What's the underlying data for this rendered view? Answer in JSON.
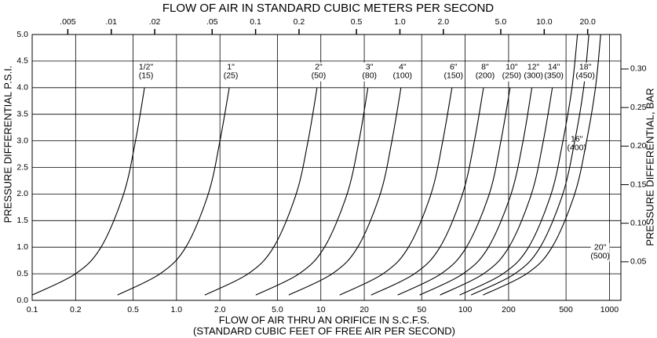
{
  "chart_data": {
    "type": "line",
    "title": "FLOW OF AIR IN STANDARD CUBIC METERS PER SECOND",
    "xlabel": "FLOW OF AIR THRU AN ORIFICE IN S.C.F.S.",
    "xlabel2": "(STANDARD CUBIC FEET OF FREE AIR PER SECOND)",
    "ylabel": "PRESSURE DIFFERENTIAL P.S.I.",
    "y2label": "PRESSURE DIFFERENTIAL, BAR",
    "xscale": "log",
    "grid": true,
    "color": "#000000",
    "xlim": [
      0.1,
      1200
    ],
    "xticks": [
      0.1,
      0.2,
      0.5,
      {
        "value": 1,
        "label": "1.0"
      },
      {
        "value": 2,
        "label": "2.0"
      },
      {
        "value": 5,
        "label": "5.0"
      },
      10,
      20,
      50,
      100,
      200,
      500,
      1000
    ],
    "x2lim": [
      0.002832,
      33.98
    ],
    "x2ticks": [
      {
        "value": 0.005,
        "label": ".005"
      },
      {
        "value": 0.01,
        "label": ".01"
      },
      {
        "value": 0.02,
        "label": ".02"
      },
      {
        "value": 0.05,
        "label": ".05"
      },
      0.1,
      0.2,
      0.5,
      {
        "value": 1,
        "label": "1.0"
      },
      {
        "value": 2,
        "label": "2.0"
      },
      {
        "value": 5,
        "label": "5.0"
      },
      {
        "value": 10,
        "label": "10.0"
      },
      {
        "value": 20,
        "label": "20.0"
      }
    ],
    "ylim": [
      0,
      5
    ],
    "yticks": [
      {
        "value": 0,
        "label": "0.0"
      },
      0.5,
      {
        "value": 1,
        "label": "1.0"
      },
      1.5,
      {
        "value": 2,
        "label": "2.0"
      },
      2.5,
      {
        "value": 3,
        "label": "3.0"
      },
      3.5,
      {
        "value": 4,
        "label": "4.0"
      },
      4.5,
      {
        "value": 5,
        "label": "5.0"
      }
    ],
    "y2lim": [
      0,
      0.3447
    ],
    "y2ticks": [
      {
        "value": 0.05,
        "label": "0.05"
      },
      {
        "value": 0.1,
        "label": "0.10"
      },
      {
        "value": 0.15,
        "label": "0.15"
      },
      {
        "value": 0.2,
        "label": "0.20"
      },
      {
        "value": 0.25,
        "label": "0.25"
      },
      {
        "value": 0.3,
        "label": "0.30"
      }
    ],
    "series": [
      {
        "name": "1/2\"",
        "size": "(15)",
        "x": [
          0.1,
          0.2,
          0.3,
          0.43,
          0.52,
          0.6
        ],
        "values": [
          0.1,
          0.5,
          1,
          2,
          3,
          4
        ]
      },
      {
        "name": "1\"",
        "size": "(25)",
        "x": [
          0.39,
          0.77,
          1.16,
          1.66,
          2.0,
          2.32
        ],
        "values": [
          0.1,
          0.5,
          1,
          2,
          3,
          4
        ]
      },
      {
        "name": "2\"",
        "size": "(50)",
        "x": [
          1.57,
          3.14,
          4.71,
          6.75,
          8.16,
          9.42
        ],
        "values": [
          0.1,
          0.5,
          1,
          2,
          3,
          4
        ]
      },
      {
        "name": "3\"",
        "size": "(80)",
        "x": [
          3.54,
          7.08,
          10.6,
          15.2,
          18.4,
          21.2
        ],
        "values": [
          0.1,
          0.5,
          1,
          2,
          3,
          4
        ]
      },
      {
        "name": "4\"",
        "size": "(100)",
        "x": [
          5.99,
          12.0,
          18.0,
          25.8,
          31.1,
          35.9
        ],
        "values": [
          0.1,
          0.5,
          1,
          2,
          3,
          4
        ]
      },
      {
        "name": "6\"",
        "size": "(150)",
        "x": [
          13.5,
          27,
          40.5,
          58,
          70,
          81
        ],
        "values": [
          0.1,
          0.5,
          1,
          2,
          3,
          4
        ]
      },
      {
        "name": "8\"",
        "size": "(200)",
        "x": [
          22.3,
          44.6,
          66.9,
          95.9,
          116,
          134
        ],
        "values": [
          0.1,
          0.5,
          1,
          2,
          3,
          4
        ]
      },
      {
        "name": "10\"",
        "size": "(250)",
        "x": [
          34.1,
          68.2,
          102,
          147,
          177,
          205
        ],
        "values": [
          0.1,
          0.5,
          1,
          2,
          3,
          4
        ]
      },
      {
        "name": "12\"",
        "size": "(300)",
        "x": [
          48.4,
          96.8,
          145,
          208,
          252,
          290
        ],
        "values": [
          0.1,
          0.5,
          1,
          2,
          3,
          4
        ]
      },
      {
        "name": "14\"",
        "size": "(350)",
        "x": [
          67,
          134,
          201,
          288,
          348,
          402
        ],
        "values": [
          0.1,
          0.5,
          1,
          2,
          3,
          4
        ]
      },
      {
        "name": "16\"",
        "size": "(400)",
        "x": [
          91.6,
          183,
          275,
          394,
          476,
          550,
          600
        ],
        "values": [
          0.1,
          0.5,
          1,
          2,
          3,
          4,
          5
        ]
      },
      {
        "name": "18\"",
        "size": "(450)",
        "x": [
          110,
          221,
          331,
          475,
          575,
          663,
          720
        ],
        "values": [
          0.1,
          0.5,
          1,
          2,
          3,
          4,
          5
        ]
      },
      {
        "name": "20\"",
        "size": "(500)",
        "x": [
          133,
          267,
          400,
          574,
          694,
          800,
          870
        ],
        "values": [
          0.1,
          0.5,
          1,
          2,
          3,
          4,
          5
        ]
      }
    ]
  }
}
